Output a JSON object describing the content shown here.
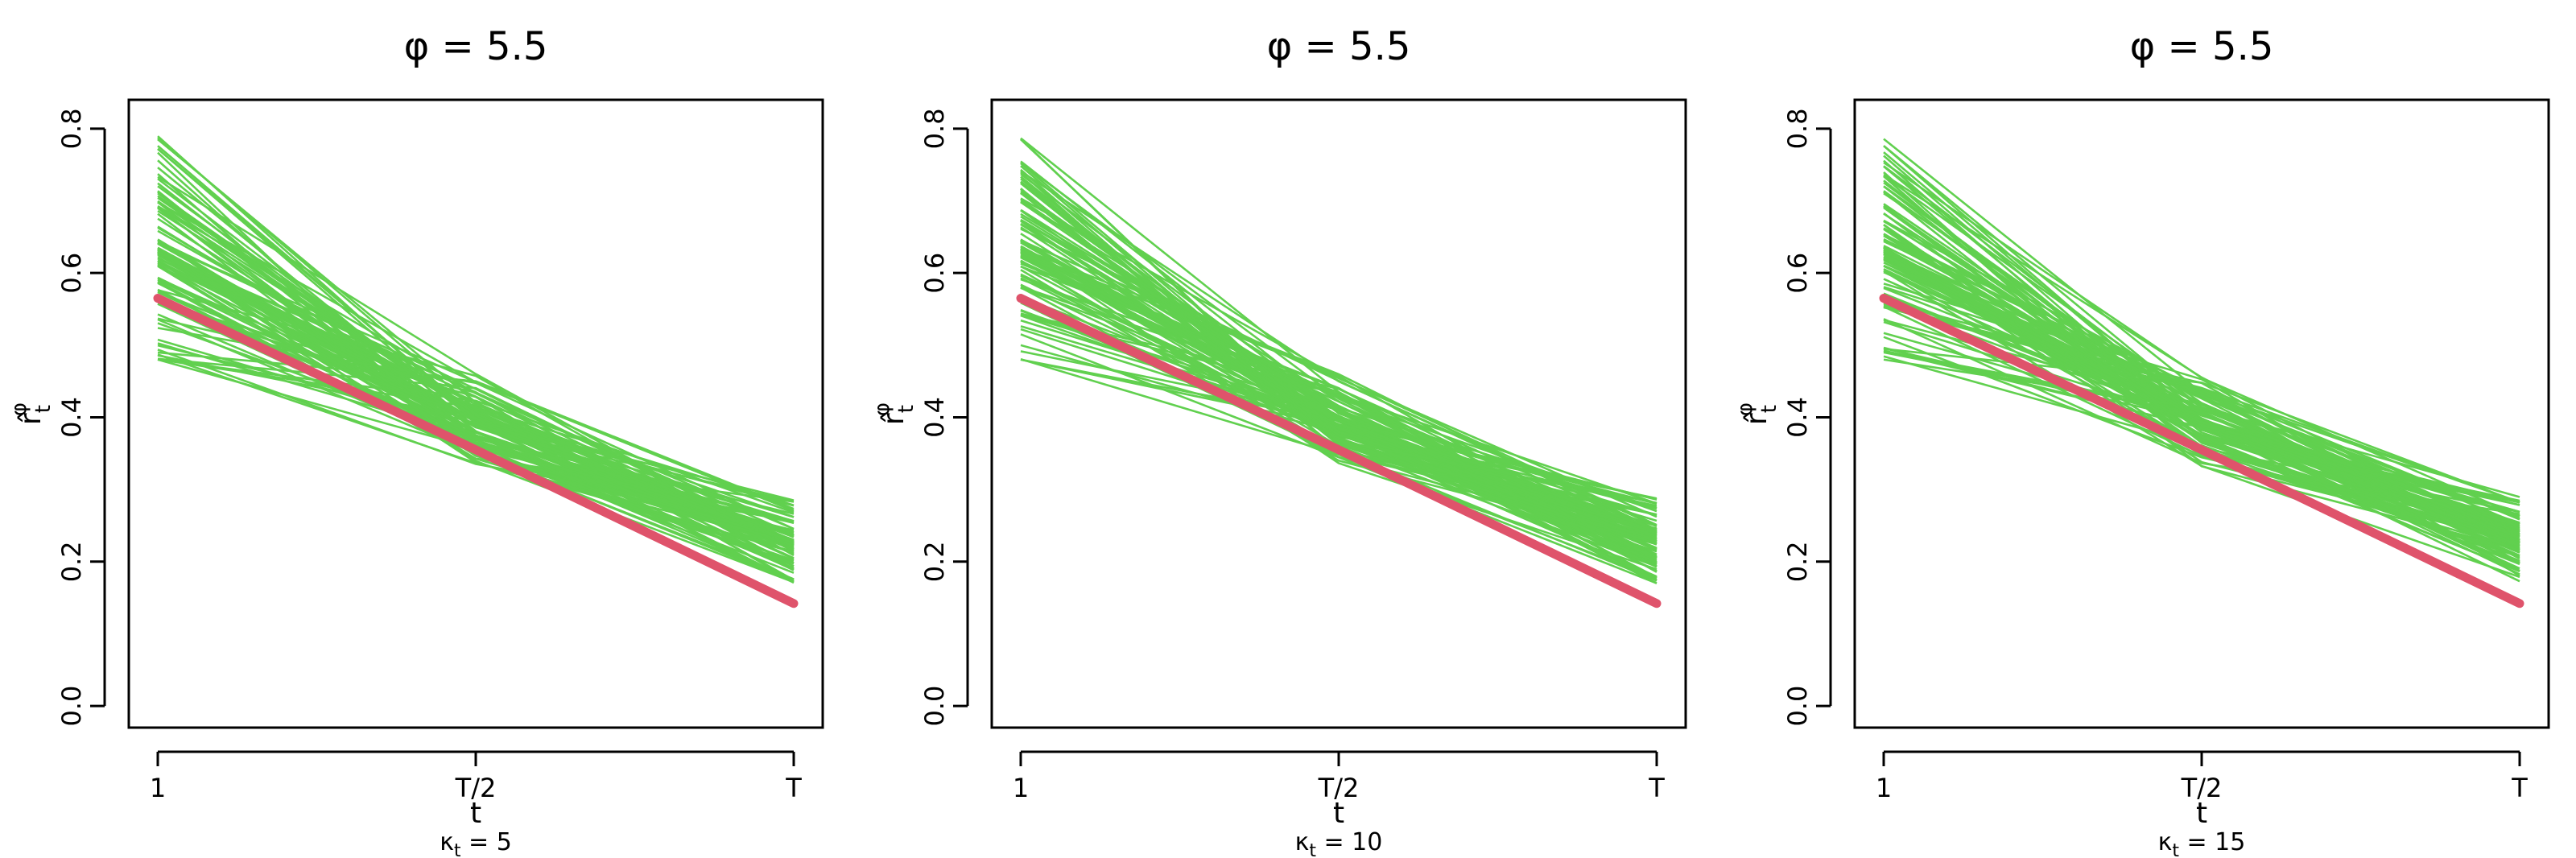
{
  "colors": {
    "simulations": "#61d04f",
    "truth": "#df536b"
  },
  "chart_data": [
    {
      "type": "line",
      "title": "φ = 5.5",
      "xlabel": "t",
      "ylabel_main": "r̂",
      "ylabel_sub": "t",
      "ylabel_sup": "φ",
      "subtitle_main": "κ",
      "subtitle_sub": "t",
      "subtitle_rest": " = 5",
      "x_tick_labels": [
        "1",
        "T/2",
        "T"
      ],
      "y_ticks": [
        0.0,
        0.2,
        0.4,
        0.6,
        0.8
      ],
      "y_tick_labels": [
        "0.0",
        "0.2",
        "0.4",
        "0.6",
        "0.8"
      ],
      "ylim": [
        -0.03,
        0.84
      ],
      "truth": [
        0.565,
        0.355,
        0.142
      ],
      "simulations": {
        "count": 100,
        "start_range": [
          0.48,
          0.8
        ],
        "start_center": 0.63,
        "mid_range": [
          0.33,
          0.46
        ],
        "mid_center": 0.395,
        "end_range": [
          0.17,
          0.29
        ],
        "end_center": 0.225
      }
    },
    {
      "type": "line",
      "title": "φ = 5.5",
      "xlabel": "t",
      "ylabel_main": "r̂",
      "ylabel_sub": "t",
      "ylabel_sup": "φ",
      "subtitle_main": "κ",
      "subtitle_sub": "t",
      "subtitle_rest": " = 10",
      "x_tick_labels": [
        "1",
        "T/2",
        "T"
      ],
      "y_ticks": [
        0.0,
        0.2,
        0.4,
        0.6,
        0.8
      ],
      "y_tick_labels": [
        "0.0",
        "0.2",
        "0.4",
        "0.6",
        "0.8"
      ],
      "ylim": [
        -0.03,
        0.84
      ],
      "truth": [
        0.565,
        0.355,
        0.142
      ],
      "simulations": {
        "count": 100,
        "start_range": [
          0.48,
          0.8
        ],
        "start_center": 0.63,
        "mid_range": [
          0.33,
          0.46
        ],
        "mid_center": 0.395,
        "end_range": [
          0.17,
          0.29
        ],
        "end_center": 0.228
      }
    },
    {
      "type": "line",
      "title": "φ = 5.5",
      "xlabel": "t",
      "ylabel_main": "r̂",
      "ylabel_sub": "t",
      "ylabel_sup": "φ",
      "subtitle_main": "κ",
      "subtitle_sub": "t",
      "subtitle_rest": " = 15",
      "x_tick_labels": [
        "1",
        "T/2",
        "T"
      ],
      "y_ticks": [
        0.0,
        0.2,
        0.4,
        0.6,
        0.8
      ],
      "y_tick_labels": [
        "0.0",
        "0.2",
        "0.4",
        "0.6",
        "0.8"
      ],
      "ylim": [
        -0.03,
        0.84
      ],
      "truth": [
        0.565,
        0.355,
        0.142
      ],
      "simulations": {
        "count": 100,
        "start_range": [
          0.48,
          0.8
        ],
        "start_center": 0.63,
        "mid_range": [
          0.33,
          0.46
        ],
        "mid_center": 0.395,
        "end_range": [
          0.17,
          0.29
        ],
        "end_center": 0.23
      }
    }
  ]
}
